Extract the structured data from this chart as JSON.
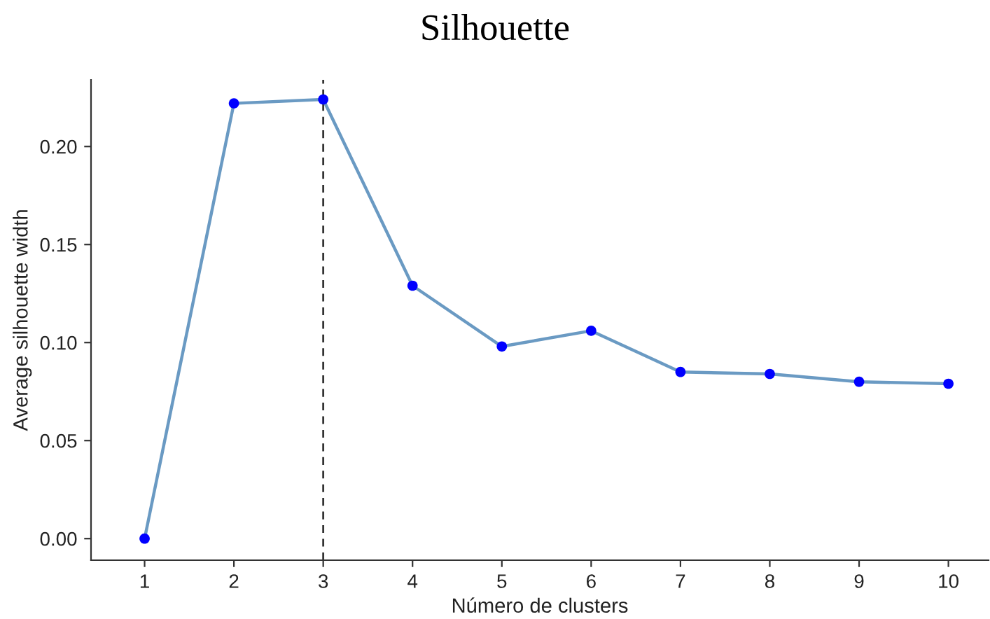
{
  "chart_data": {
    "type": "line",
    "title": "Silhouette",
    "xlabel": "Número de clusters",
    "ylabel": "Average silhouette width",
    "categories": [
      "1",
      "2",
      "3",
      "4",
      "5",
      "6",
      "7",
      "8",
      "9",
      "10"
    ],
    "series": [
      {
        "color": "#6a9ac3",
        "values": [
          0.0,
          0.222,
          0.224,
          0.129,
          0.098,
          0.106,
          0.085,
          0.084,
          0.08,
          0.079
        ]
      },
      {
        "type": "scatter",
        "color": "#0000ff",
        "values": [
          0.0,
          0.222,
          0.224,
          0.129,
          0.098,
          0.106,
          0.085,
          0.084,
          0.08,
          0.079
        ]
      }
    ],
    "ylim": [
      -0.011,
      0.234
    ],
    "yticks": [
      {
        "value": 0,
        "label": "0.00"
      },
      {
        "value": 0.05,
        "label": "0.05"
      },
      {
        "value": 0.1,
        "label": "0.10"
      },
      {
        "value": 0.15,
        "label": "0.15"
      },
      {
        "value": 0.2,
        "label": "0.20"
      }
    ],
    "ref_lines": [
      {
        "axis": "x",
        "value": "3",
        "color": "#333333",
        "line_style": "dashed"
      }
    ],
    "grid": false,
    "legend": false
  }
}
